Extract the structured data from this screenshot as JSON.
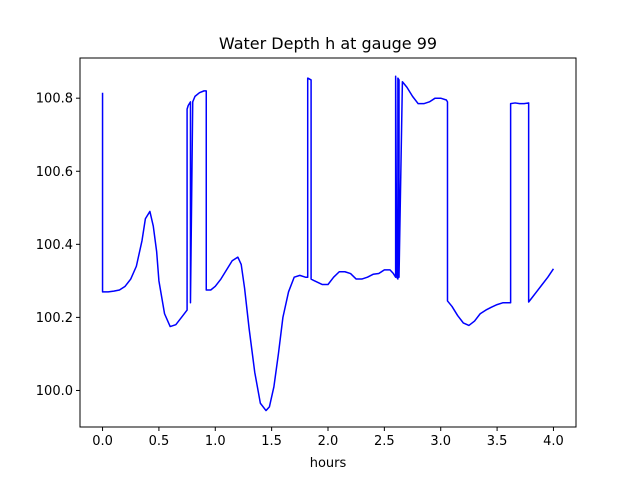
{
  "chart_data": {
    "type": "line",
    "title": "Water Depth h at gauge 99",
    "xlabel": "hours",
    "ylabel": "",
    "xlim": [
      -0.2,
      4.2
    ],
    "ylim": [
      99.9,
      100.91
    ],
    "grid": false,
    "legend": "none",
    "xticks": [
      0.0,
      0.5,
      1.0,
      1.5,
      2.0,
      2.5,
      3.0,
      3.5,
      4.0
    ],
    "xtick_labels": [
      "0.0",
      "0.5",
      "1.0",
      "1.5",
      "2.0",
      "2.5",
      "3.0",
      "3.5",
      "4.0"
    ],
    "yticks": [
      100.0,
      100.2,
      100.4,
      100.6,
      100.8
    ],
    "ytick_labels": [
      "100.0",
      "100.2",
      "100.4",
      "100.6",
      "100.8"
    ],
    "series": [
      {
        "color": "#0000ff",
        "x": [
          0.0,
          0.0,
          0.05,
          0.1,
          0.15,
          0.2,
          0.25,
          0.3,
          0.35,
          0.38,
          0.42,
          0.45,
          0.48,
          0.5,
          0.55,
          0.6,
          0.65,
          0.7,
          0.75,
          0.75,
          0.76,
          0.78,
          0.78,
          0.8,
          0.82,
          0.86,
          0.9,
          0.92,
          0.92,
          0.96,
          1.0,
          1.05,
          1.1,
          1.15,
          1.2,
          1.23,
          1.26,
          1.3,
          1.35,
          1.4,
          1.45,
          1.48,
          1.52,
          1.56,
          1.6,
          1.65,
          1.7,
          1.75,
          1.8,
          1.82,
          1.82,
          1.85,
          1.85,
          1.88,
          1.95,
          2.0,
          2.05,
          2.1,
          2.15,
          2.2,
          2.25,
          2.3,
          2.35,
          2.4,
          2.45,
          2.5,
          2.55,
          2.58,
          2.6,
          2.6,
          2.61,
          2.62,
          2.62,
          2.63,
          2.63,
          2.66,
          2.7,
          2.75,
          2.8,
          2.85,
          2.9,
          2.95,
          3.0,
          3.05,
          3.06,
          3.06,
          3.1,
          3.15,
          3.2,
          3.25,
          3.3,
          3.35,
          3.4,
          3.45,
          3.5,
          3.55,
          3.6,
          3.62,
          3.62,
          3.66,
          3.7,
          3.74,
          3.78,
          3.78,
          3.8,
          3.85,
          3.9,
          3.95,
          4.0
        ],
        "y": [
          100.815,
          100.27,
          100.27,
          100.272,
          100.275,
          100.285,
          100.305,
          100.34,
          100.41,
          100.47,
          100.49,
          100.45,
          100.38,
          100.3,
          100.21,
          100.175,
          100.18,
          100.2,
          100.22,
          100.77,
          100.78,
          100.79,
          100.24,
          100.79,
          100.805,
          100.815,
          100.82,
          100.82,
          100.275,
          100.275,
          100.285,
          100.305,
          100.33,
          100.355,
          100.365,
          100.345,
          100.28,
          100.17,
          100.05,
          99.965,
          99.945,
          99.955,
          100.01,
          100.1,
          100.2,
          100.27,
          100.31,
          100.315,
          100.31,
          100.31,
          100.855,
          100.85,
          100.305,
          100.3,
          100.29,
          100.29,
          100.31,
          100.325,
          100.325,
          100.32,
          100.305,
          100.305,
          100.31,
          100.318,
          100.32,
          100.33,
          100.33,
          100.32,
          100.31,
          100.86,
          100.31,
          100.305,
          100.855,
          100.85,
          100.31,
          100.845,
          100.83,
          100.805,
          100.785,
          100.785,
          100.79,
          100.8,
          100.8,
          100.795,
          100.79,
          100.245,
          100.23,
          100.205,
          100.185,
          100.178,
          100.19,
          100.21,
          100.22,
          100.228,
          100.235,
          100.24,
          100.24,
          100.24,
          100.785,
          100.787,
          100.785,
          100.785,
          100.787,
          100.242,
          100.25,
          100.27,
          100.29,
          100.31,
          100.333
        ]
      }
    ]
  }
}
